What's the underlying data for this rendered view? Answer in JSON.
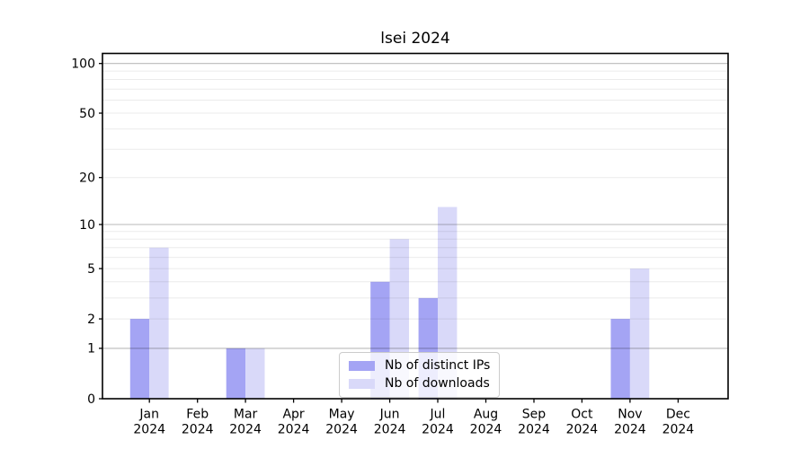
{
  "title": "lsei 2024",
  "colors": {
    "distinct_ips": "#a4a4f4",
    "downloads": "#d9d9f9",
    "grid_major": "rgba(0,0,0,0.27)",
    "grid_minor": "rgba(0,0,0,0.08)",
    "axis": "#000000",
    "legend_border": "#cccccc",
    "text": "#000000"
  },
  "legend": {
    "items": [
      {
        "label": "Nb of distinct IPs",
        "color_key": "distinct_ips"
      },
      {
        "label": "Nb of downloads",
        "color_key": "downloads"
      }
    ],
    "position": "lower center, inside plot"
  },
  "chart_data": {
    "type": "bar",
    "title": "lsei 2024",
    "categories": [
      "Jan 2024",
      "Feb 2024",
      "Mar 2024",
      "Apr 2024",
      "May 2024",
      "Jun 2024",
      "Jul 2024",
      "Aug 2024",
      "Sep 2024",
      "Oct 2024",
      "Nov 2024",
      "Dec 2024"
    ],
    "month_labels": [
      "Jan",
      "Feb",
      "Mar",
      "Apr",
      "May",
      "Jun",
      "Jul",
      "Aug",
      "Sep",
      "Oct",
      "Nov",
      "Dec"
    ],
    "year_label": "2024",
    "series": [
      {
        "name": "Nb of distinct IPs",
        "color_key": "distinct_ips",
        "values": [
          2,
          0,
          1,
          0,
          0,
          4,
          3,
          0,
          0,
          0,
          2,
          0
        ]
      },
      {
        "name": "Nb of downloads",
        "color_key": "downloads",
        "values": [
          7,
          0,
          1,
          0,
          0,
          8,
          13,
          0,
          0,
          0,
          5,
          0
        ]
      }
    ],
    "xlabel": "",
    "ylabel": "",
    "y_scale": "log1p",
    "ylim": [
      0,
      115
    ],
    "y_tick_values": [
      0,
      1,
      2,
      5,
      10,
      20,
      50,
      100
    ],
    "y_major_gridlines": [
      1,
      10,
      100
    ],
    "y_minor_gridlines": [
      2,
      3,
      4,
      5,
      6,
      7,
      8,
      9,
      20,
      30,
      40,
      50,
      60,
      70,
      80,
      90
    ],
    "grid": true,
    "grid_above_bars": true
  }
}
